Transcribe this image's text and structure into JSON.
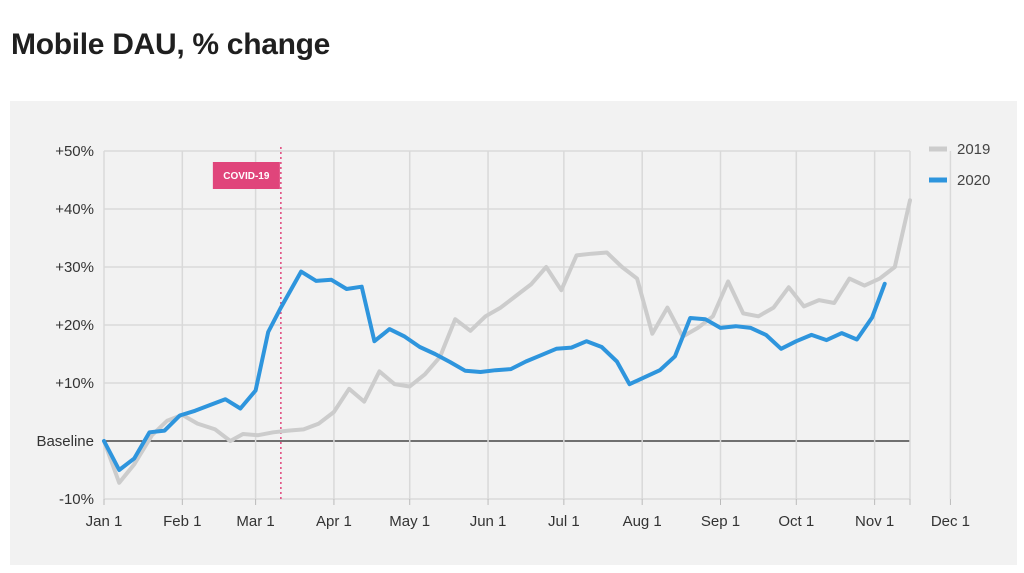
{
  "title": "Mobile DAU, % change",
  "chart_data": {
    "type": "line",
    "xlabel": "",
    "ylabel": "",
    "x_range": [
      1,
      365
    ],
    "ylim": [
      -10,
      50
    ],
    "x_ticks": [
      {
        "label": "Jan 1",
        "day": 1
      },
      {
        "label": "Feb 1",
        "day": 32
      },
      {
        "label": "Mar 1",
        "day": 61
      },
      {
        "label": "Apr 1",
        "day": 92
      },
      {
        "label": "May 1",
        "day": 122
      },
      {
        "label": "Jun 1",
        "day": 153
      },
      {
        "label": "Jul 1",
        "day": 183
      },
      {
        "label": "Aug 1",
        "day": 214
      },
      {
        "label": "Sep 1",
        "day": 245
      },
      {
        "label": "Oct 1",
        "day": 275
      },
      {
        "label": "Nov 1",
        "day": 306
      },
      {
        "label": "Dec 1",
        "day": 336
      }
    ],
    "y_ticks": [
      {
        "label": "+50%",
        "value": 50
      },
      {
        "label": "+40%",
        "value": 40
      },
      {
        "label": "+30%",
        "value": 30
      },
      {
        "label": "+20%",
        "value": 20
      },
      {
        "label": "+10%",
        "value": 10
      },
      {
        "label": "Baseline",
        "value": 0
      },
      {
        "label": "-10%",
        "value": -10
      }
    ],
    "grid": true,
    "legend_position": "right",
    "baseline_value": 0,
    "annotation": {
      "label": "COVID-19",
      "day": 71,
      "color": "#e0457b"
    },
    "series": [
      {
        "name": "2019",
        "color": "#cccccc",
        "points": [
          [
            1,
            0
          ],
          [
            7,
            -7.2
          ],
          [
            13,
            -4.0
          ],
          [
            20,
            1.0
          ],
          [
            26,
            3.5
          ],
          [
            32,
            4.5
          ],
          [
            38,
            3.0
          ],
          [
            45,
            2.0
          ],
          [
            51,
            0
          ],
          [
            56,
            1.2
          ],
          [
            62,
            1.0
          ],
          [
            68,
            1.5
          ],
          [
            74,
            1.8
          ],
          [
            80,
            2.0
          ],
          [
            86,
            3.0
          ],
          [
            92,
            5.0
          ],
          [
            98,
            9.0
          ],
          [
            104,
            6.8
          ],
          [
            110,
            12.0
          ],
          [
            116,
            9.8
          ],
          [
            122,
            9.4
          ],
          [
            128,
            11.5
          ],
          [
            134,
            14.5
          ],
          [
            140,
            21.0
          ],
          [
            146,
            19.0
          ],
          [
            152,
            21.5
          ],
          [
            158,
            23.0
          ],
          [
            164,
            25.0
          ],
          [
            170,
            27.0
          ],
          [
            176,
            30.0
          ],
          [
            182,
            26.0
          ],
          [
            188,
            32.0
          ],
          [
            194,
            32.3
          ],
          [
            200,
            32.5
          ],
          [
            206,
            30.0
          ],
          [
            212,
            28.0
          ],
          [
            218,
            18.5
          ],
          [
            224,
            23.0
          ],
          [
            230,
            18.0
          ],
          [
            236,
            19.5
          ],
          [
            242,
            21.5
          ],
          [
            248,
            27.5
          ],
          [
            254,
            22.0
          ],
          [
            260,
            21.5
          ],
          [
            266,
            23.0
          ],
          [
            272,
            26.5
          ],
          [
            278,
            23.2
          ],
          [
            284,
            24.3
          ],
          [
            290,
            23.8
          ],
          [
            296,
            28.0
          ],
          [
            302,
            26.8
          ],
          [
            308,
            28.0
          ],
          [
            314,
            30.0
          ],
          [
            320,
            41.5
          ]
        ]
      },
      {
        "name": "2020",
        "color": "#2e95dd",
        "points": [
          [
            1,
            0
          ],
          [
            7,
            -5.0
          ],
          [
            13,
            -3.0
          ],
          [
            19,
            1.5
          ],
          [
            25,
            1.8
          ],
          [
            31,
            4.4
          ],
          [
            37,
            5.2
          ],
          [
            43,
            6.2
          ],
          [
            49,
            7.2
          ],
          [
            55,
            5.6
          ],
          [
            61,
            8.7
          ],
          [
            66,
            18.8
          ],
          [
            71,
            23.0
          ],
          [
            79,
            29.2
          ],
          [
            85,
            27.6
          ],
          [
            91,
            27.8
          ],
          [
            97,
            26.2
          ],
          [
            103,
            26.6
          ],
          [
            108,
            17.2
          ],
          [
            114,
            19.3
          ],
          [
            120,
            18.0
          ],
          [
            126,
            16.2
          ],
          [
            132,
            15.0
          ],
          [
            138,
            13.6
          ],
          [
            144,
            12.1
          ],
          [
            150,
            11.9
          ],
          [
            156,
            12.2
          ],
          [
            162,
            12.4
          ],
          [
            168,
            13.7
          ],
          [
            174,
            14.8
          ],
          [
            180,
            15.9
          ],
          [
            186,
            16.1
          ],
          [
            192,
            17.2
          ],
          [
            198,
            16.2
          ],
          [
            204,
            13.7
          ],
          [
            209,
            9.8
          ],
          [
            215,
            11.0
          ],
          [
            221,
            12.2
          ],
          [
            227,
            14.6
          ],
          [
            233,
            21.2
          ],
          [
            239,
            21.0
          ],
          [
            245,
            19.5
          ],
          [
            251,
            19.8
          ],
          [
            257,
            19.5
          ],
          [
            263,
            18.3
          ],
          [
            269,
            15.9
          ],
          [
            275,
            17.2
          ],
          [
            281,
            18.3
          ],
          [
            287,
            17.4
          ],
          [
            293,
            18.6
          ],
          [
            299,
            17.5
          ],
          [
            305,
            21.3
          ],
          [
            310,
            27.1
          ]
        ]
      }
    ]
  }
}
